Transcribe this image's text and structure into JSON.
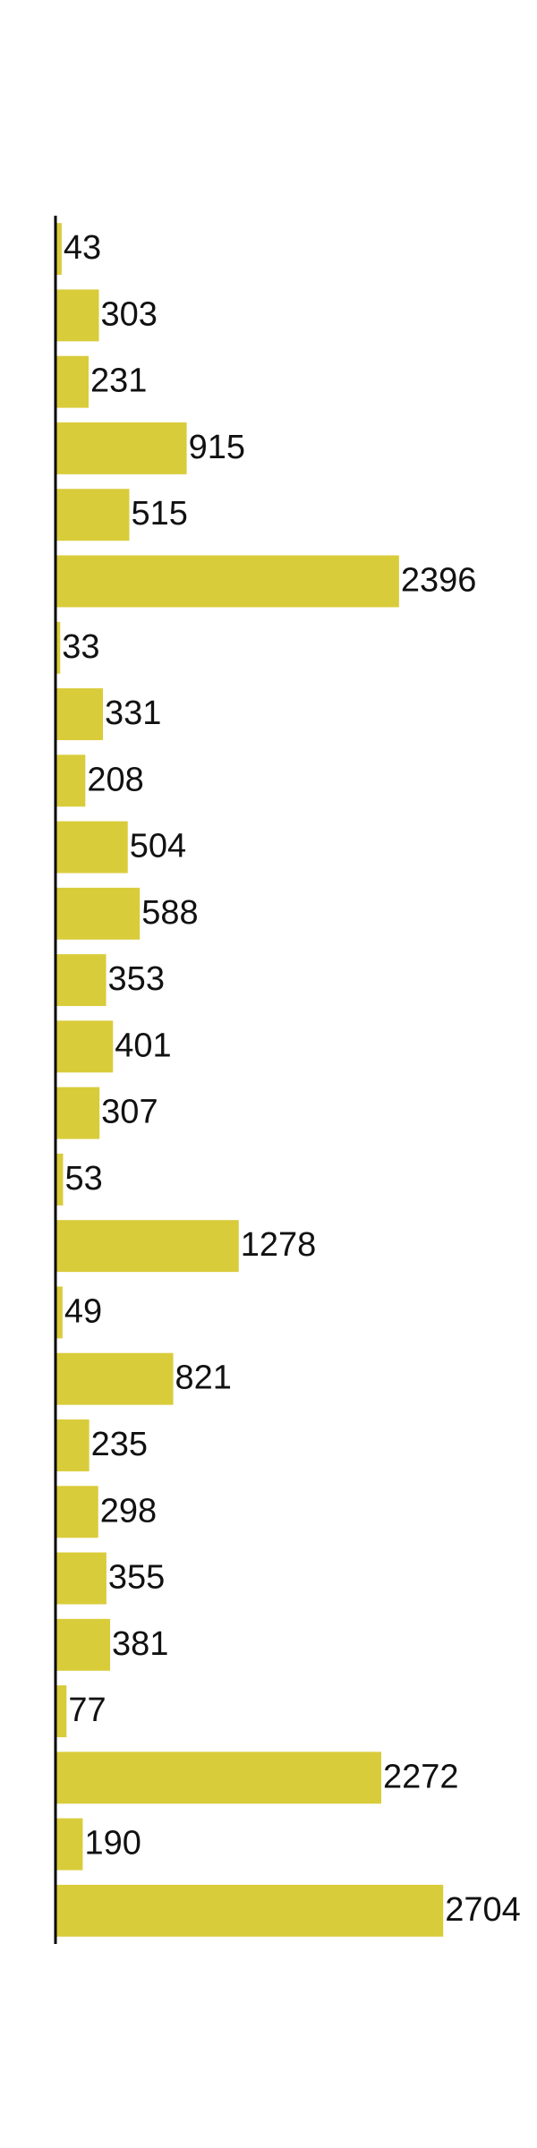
{
  "chart_data": {
    "type": "barh",
    "categories": [
      null,
      null,
      null,
      null,
      null,
      null,
      null,
      null,
      null,
      null,
      null,
      null,
      null,
      null,
      null,
      null,
      null,
      null,
      null,
      null,
      null,
      null,
      null,
      null,
      null,
      null
    ],
    "values": [
      43,
      303,
      231,
      915,
      515,
      2396,
      33,
      331,
      208,
      504,
      588,
      353,
      401,
      307,
      53,
      1278,
      49,
      821,
      235,
      298,
      355,
      381,
      77,
      2272,
      190,
      2704
    ],
    "color": "#d9cc3a",
    "xlim": [
      0,
      2840
    ]
  }
}
